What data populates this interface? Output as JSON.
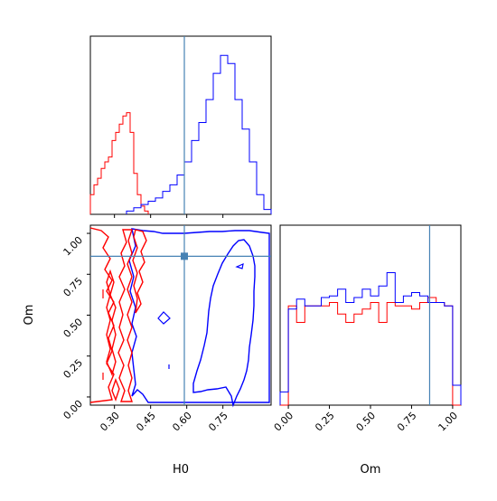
{
  "chart_data": {
    "type": "corner",
    "parameters": [
      "H0",
      "Om"
    ],
    "truths": {
      "H0": 0.59,
      "Om": 0.86
    },
    "colors": {
      "run_red": "#ff0000",
      "run_blue": "#0000ff",
      "truth": "#4682b4"
    },
    "axes": {
      "H0": {
        "label": "H0",
        "range": [
          0.2,
          0.95
        ],
        "ticks": [
          "0.30",
          "0.45",
          "0.60",
          "0.75"
        ],
        "tick_values": [
          0.3,
          0.45,
          0.6,
          0.75
        ]
      },
      "Om": {
        "label": "Om",
        "range": [
          -0.05,
          1.05
        ],
        "ticks": [
          "0.00",
          "0.25",
          "0.50",
          "0.75",
          "1.00"
        ],
        "tick_values": [
          0.0,
          0.25,
          0.5,
          0.75,
          1.0
        ]
      }
    },
    "hist_H0": {
      "red": {
        "bins": [
          0.2,
          0.215,
          0.23,
          0.245,
          0.26,
          0.275,
          0.29,
          0.305,
          0.32,
          0.335,
          0.35,
          0.365,
          0.38,
          0.395,
          0.41,
          0.425,
          0.44
        ],
        "counts": [
          0.12,
          0.18,
          0.22,
          0.28,
          0.32,
          0.35,
          0.45,
          0.5,
          0.55,
          0.6,
          0.62,
          0.5,
          0.25,
          0.12,
          0.05,
          0.02
        ]
      },
      "blue": {
        "bins": [
          0.35,
          0.38,
          0.41,
          0.44,
          0.47,
          0.5,
          0.53,
          0.56,
          0.59,
          0.62,
          0.65,
          0.68,
          0.71,
          0.74,
          0.77,
          0.8,
          0.83,
          0.86,
          0.89,
          0.92,
          0.95
        ],
        "counts": [
          0.02,
          0.04,
          0.06,
          0.08,
          0.1,
          0.14,
          0.18,
          0.24,
          0.32,
          0.45,
          0.56,
          0.7,
          0.86,
          0.97,
          0.92,
          0.7,
          0.52,
          0.32,
          0.12,
          0.03
        ]
      }
    },
    "hist_Om": {
      "bins": [
        -0.05,
        0.0,
        0.05,
        0.1,
        0.15,
        0.2,
        0.25,
        0.3,
        0.35,
        0.4,
        0.45,
        0.5,
        0.55,
        0.6,
        0.65,
        0.7,
        0.75,
        0.8,
        0.85,
        0.9,
        0.95,
        1.0,
        1.05
      ],
      "red": [
        0.0,
        0.6,
        0.5,
        0.6,
        0.6,
        0.6,
        0.62,
        0.55,
        0.5,
        0.55,
        0.58,
        0.62,
        0.5,
        0.62,
        0.6,
        0.6,
        0.58,
        0.62,
        0.65,
        0.62,
        0.6,
        0.0
      ],
      "blue": [
        0.08,
        0.58,
        0.64,
        0.6,
        0.6,
        0.65,
        0.66,
        0.7,
        0.62,
        0.65,
        0.7,
        0.66,
        0.72,
        0.8,
        0.62,
        0.66,
        0.68,
        0.66,
        0.62,
        0.62,
        0.6,
        0.12
      ]
    }
  }
}
